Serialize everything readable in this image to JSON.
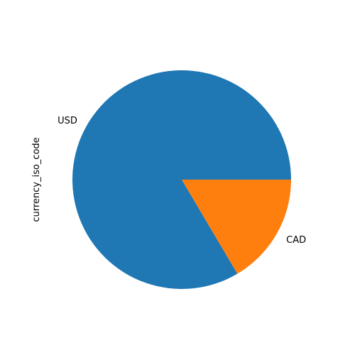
{
  "chart_data": {
    "type": "pie",
    "title": "",
    "ylabel": "currency_iso_code",
    "slices": [
      {
        "label": "USD",
        "value": 83.5,
        "color": "#1f77b4"
      },
      {
        "label": "CAD",
        "value": 16.5,
        "color": "#ff7f0e"
      }
    ],
    "start_angle_deg": 0,
    "direction": "counterclockwise",
    "legend": "none"
  }
}
